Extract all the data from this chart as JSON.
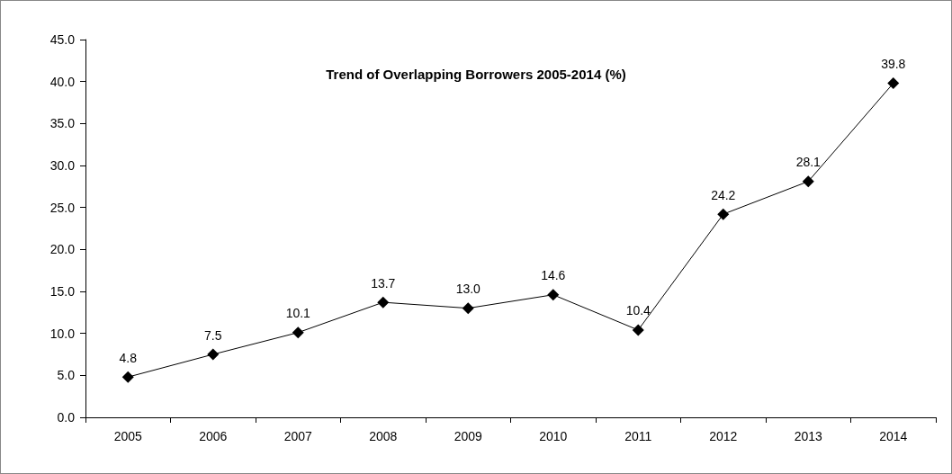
{
  "chart_data": {
    "type": "line",
    "title": "Trend of Overlapping Borrowers 2005-2014 (%)",
    "categories": [
      "2005",
      "2006",
      "2007",
      "2008",
      "2009",
      "2010",
      "2011",
      "2012",
      "2013",
      "2014"
    ],
    "series": [
      {
        "color": "#000000",
        "values": [
          4.8,
          7.5,
          10.1,
          13.7,
          13.0,
          14.6,
          10.4,
          24.2,
          28.1,
          39.8
        ],
        "value_labels": [
          "4.8",
          "7.5",
          "10.1",
          "13.7",
          "13.0",
          "14.6",
          "10.4",
          "24.2",
          "28.1",
          "39.8"
        ]
      }
    ],
    "ylim": [
      0,
      45
    ],
    "yticks": [
      {
        "value": 0,
        "label": "0.0"
      },
      {
        "value": 5,
        "label": "5.0"
      },
      {
        "value": 10,
        "label": "10.0"
      },
      {
        "value": 15,
        "label": "15.0"
      },
      {
        "value": 20,
        "label": "20.0"
      },
      {
        "value": 25,
        "label": "25.0"
      },
      {
        "value": 30,
        "label": "30.0"
      },
      {
        "value": 35,
        "label": "35.0"
      },
      {
        "value": 40,
        "label": "40.0"
      },
      {
        "value": 45,
        "label": "45.0"
      }
    ],
    "grid": false,
    "marker": "diamond",
    "line_style": "solid"
  }
}
